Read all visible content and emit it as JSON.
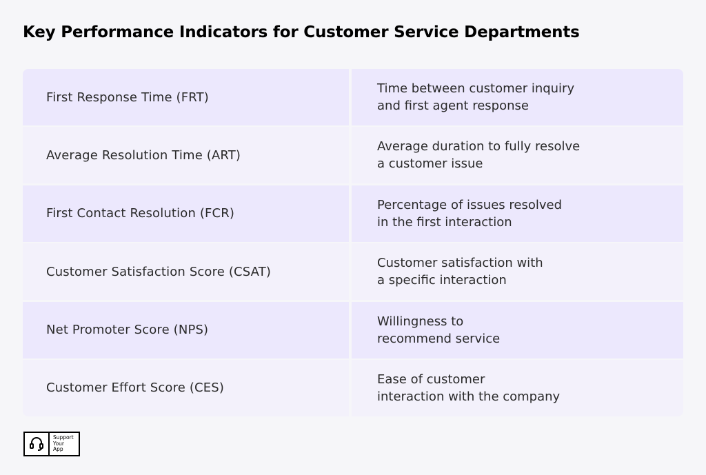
{
  "page": {
    "title": "Key Performance Indicators for Customer Service Departments"
  },
  "table": {
    "rows": [
      {
        "name": "First Response Time (FRT)",
        "description": "Time between customer inquiry\nand first agent response"
      },
      {
        "name": "Average Resolution Time (ART)",
        "description": "Average duration to fully resolve\na customer issue"
      },
      {
        "name": "First Contact Resolution (FCR)",
        "description": "Percentage of issues resolved\nin the first interaction"
      },
      {
        "name": "Customer Satisfaction Score (CSAT)",
        "description": "Customer satisfaction with\na specific interaction"
      },
      {
        "name": "Net Promoter Score (NPS)",
        "description": "Willingness to\nrecommend service"
      },
      {
        "name": "Customer Effort Score (CES)",
        "description": "Ease of customer\ninteraction with the company"
      }
    ],
    "colors": {
      "odd_row": "#ece8fd",
      "even_row": "#f3f1fb",
      "page_background": "#f6f6f9"
    }
  },
  "logo": {
    "text": "Support\nYour\nApp",
    "icon": "headset-icon"
  }
}
